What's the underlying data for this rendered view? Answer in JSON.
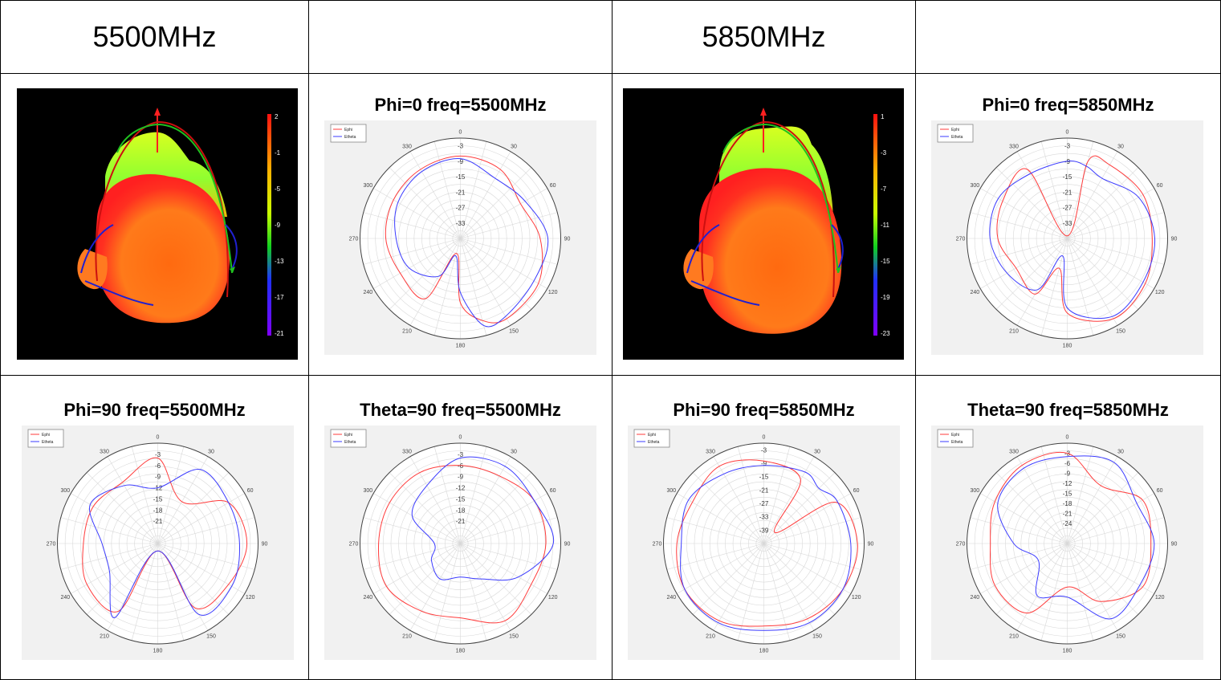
{
  "headers": [
    "5500MHz",
    "",
    "5850MHz",
    ""
  ],
  "legend": [
    "Ephi",
    "Etheta"
  ],
  "colors": {
    "ephi": "#ff3b3b",
    "etheta": "#3b3bff",
    "grid": "#d8d8d8",
    "frame": "#444444"
  },
  "scales": [
    {
      "name": "5500MHz",
      "ticks": [
        "2",
        "-1",
        "-5",
        "-9",
        "-13",
        "-17",
        "-21"
      ]
    },
    {
      "name": "5850MHz",
      "ticks": [
        "1",
        "-3",
        "-7",
        "-11",
        "-15",
        "-19",
        "-23"
      ]
    }
  ],
  "chart_data": [
    {
      "type": "polar",
      "title": "Phi=0 freq=5500MHz",
      "angle_labels": [
        "0",
        "30",
        "60",
        "90",
        "120",
        "150",
        "180",
        "210",
        "240",
        "270",
        "300",
        "330"
      ],
      "radial_labels": [
        "-3",
        "-9",
        "-15",
        "-21",
        "-27",
        "-33"
      ],
      "rmax": 0,
      "rmin": -39,
      "angles": [
        0,
        30,
        60,
        90,
        120,
        150,
        165,
        180,
        195,
        210,
        240,
        270,
        300,
        330
      ],
      "series": [
        {
          "name": "Ephi",
          "values": [
            -7,
            -8,
            -12,
            -8,
            -4,
            -3,
            -6,
            -14,
            -33,
            -12,
            -12,
            -10,
            -9,
            -8
          ]
        },
        {
          "name": "Etheta",
          "values": [
            -8,
            -12,
            -10,
            -5,
            -6,
            -4,
            -4,
            -18,
            -32,
            -22,
            -16,
            -14,
            -11,
            -9
          ]
        }
      ]
    },
    {
      "type": "polar",
      "title": "Phi=0 freq=5850MHz",
      "angle_labels": [
        "0",
        "30",
        "60",
        "90",
        "120",
        "150",
        "180",
        "210",
        "240",
        "270",
        "300",
        "330"
      ],
      "radial_labels": [
        "-3",
        "-9",
        "-15",
        "-21",
        "-27",
        "-33"
      ],
      "rmax": 0,
      "rmin": -39,
      "angles": [
        0,
        15,
        30,
        60,
        90,
        120,
        150,
        180,
        195,
        210,
        240,
        270,
        300,
        330
      ],
      "series": [
        {
          "name": "Ephi",
          "values": [
            -38,
            -8,
            -6,
            -5,
            -6,
            -4,
            -3,
            -10,
            -27,
            -14,
            -16,
            -12,
            -10,
            -8
          ]
        },
        {
          "name": "Etheta",
          "values": [
            -9,
            -10,
            -12,
            -7,
            -5,
            -5,
            -4,
            -12,
            -32,
            -16,
            -12,
            -9,
            -8,
            -10
          ]
        }
      ]
    },
    {
      "type": "polar",
      "title": "Phi=90 freq=5500MHz",
      "angle_labels": [
        "0",
        "30",
        "60",
        "90",
        "120",
        "150",
        "180",
        "210",
        "240",
        "270",
        "300",
        "330"
      ],
      "radial_labels": [
        "-3",
        "-6",
        "-9",
        "-12",
        "-15",
        "-18",
        "-21"
      ],
      "rmax": 0,
      "rmin": -27,
      "angles": [
        0,
        30,
        60,
        90,
        120,
        150,
        180,
        210,
        240,
        270,
        300,
        330
      ],
      "series": [
        {
          "name": "Ephi",
          "values": [
            -4,
            -14,
            -5,
            -3,
            -5,
            -7,
            -25,
            -6,
            -5,
            -7,
            -7,
            -8
          ]
        },
        {
          "name": "Etheta",
          "values": [
            -12,
            -4,
            -5,
            -5,
            -4,
            -5,
            -25,
            -4,
            -12,
            -12,
            -6,
            -9
          ]
        }
      ]
    },
    {
      "type": "polar",
      "title": "Theta=90 freq=5500MHz",
      "angle_labels": [
        "0",
        "30",
        "60",
        "90",
        "120",
        "150",
        "180",
        "210",
        "240",
        "270",
        "300",
        "330"
      ],
      "radial_labels": [
        "-3",
        "-6",
        "-9",
        "-12",
        "-15",
        "-18",
        "-21"
      ],
      "rmax": 0,
      "rmin": -27,
      "angles": [
        0,
        30,
        60,
        90,
        120,
        150,
        180,
        210,
        240,
        270,
        300,
        330
      ],
      "series": [
        {
          "name": "Ephi",
          "values": [
            -6,
            -6,
            -4,
            -4,
            -5,
            -3,
            -7,
            -6,
            -4,
            -5,
            -5,
            -5
          ]
        },
        {
          "name": "Etheta",
          "values": [
            -4,
            -3,
            -4,
            -2,
            -9,
            -16,
            -18,
            -16,
            -18,
            -20,
            -12,
            -9
          ]
        }
      ]
    },
    {
      "type": "polar",
      "title": "Phi=90 freq=5850MHz",
      "angle_labels": [
        "0",
        "30",
        "60",
        "90",
        "120",
        "150",
        "180",
        "210",
        "240",
        "270",
        "300",
        "330"
      ],
      "radial_labels": [
        "-3",
        "-9",
        "-15",
        "-21",
        "-27",
        "-33",
        "-39"
      ],
      "rmax": 0,
      "rmin": -45,
      "angles": [
        0,
        30,
        45,
        60,
        90,
        120,
        150,
        180,
        210,
        240,
        270,
        300,
        330
      ],
      "series": [
        {
          "name": "Ephi",
          "values": [
            -8,
            -12,
            -38,
            -8,
            -3,
            -4,
            -6,
            -8,
            -5,
            -4,
            -6,
            -8,
            -5
          ]
        },
        {
          "name": "Etheta",
          "values": [
            -10,
            -8,
            -10,
            -7,
            -6,
            -4,
            -4,
            -6,
            -4,
            -4,
            -8,
            -6,
            -9
          ]
        }
      ]
    },
    {
      "type": "polar",
      "title": "Theta=90 freq=5850MHz",
      "angle_labels": [
        "0",
        "30",
        "60",
        "90",
        "120",
        "150",
        "180",
        "210",
        "240",
        "270",
        "300",
        "330"
      ],
      "radial_labels": [
        "-3",
        "-6",
        "-9",
        "-12",
        "-15",
        "-18",
        "-21",
        "-24"
      ],
      "rmax": 0,
      "rmin": -30,
      "angles": [
        0,
        30,
        60,
        90,
        120,
        150,
        180,
        210,
        240,
        270,
        300,
        330
      ],
      "series": [
        {
          "name": "Ephi",
          "values": [
            -3,
            -10,
            -4,
            -5,
            -4,
            -10,
            -17,
            -6,
            -5,
            -7,
            -5,
            -3
          ]
        },
        {
          "name": "Etheta",
          "values": [
            -4,
            -2,
            -6,
            -4,
            -5,
            -4,
            -14,
            -12,
            -20,
            -14,
            -6,
            -4
          ]
        }
      ]
    }
  ]
}
